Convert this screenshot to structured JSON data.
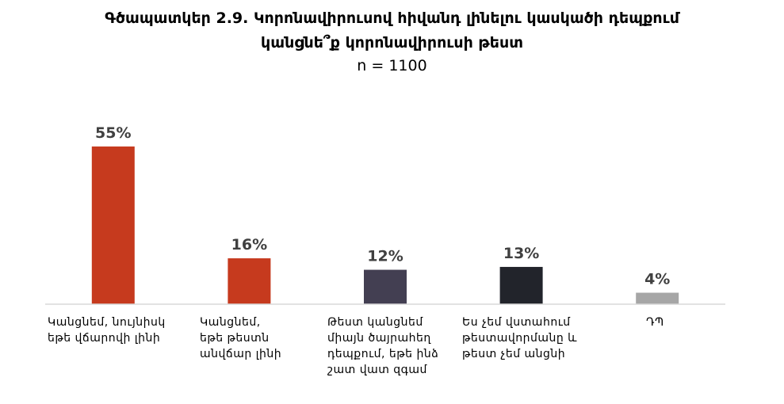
{
  "chart_data": {
    "type": "bar",
    "title_line1": "Գծապատկեր 2.9. Կորոնավիրուսով հիվանդ լինելու կասկածի դեպքում",
    "title_line2": "կանցնե՞ք կորոնավիրուսի թեստ",
    "subtitle": "n = 1100",
    "categories": [
      "Կանցնեմ, նույնիսկ եթե վճարովի լինի",
      "Կանցնեմ, եթե թեստն անվճար լինի",
      "Թեստ կանցնեմ միայն ծայրահեղ դեպքում, եթե ինձ շատ վատ զգամ",
      "Ես չեմ վստահում թեստավորմանը և թեստ չեմ անցնի",
      "ԴՊ"
    ],
    "values": [
      55,
      16,
      12,
      13,
      4
    ],
    "data_labels": [
      "55%",
      "16%",
      "12%",
      "13%",
      "4%"
    ],
    "colors": [
      "#c63a1e",
      "#c63a1e",
      "#433f52",
      "#22242b",
      "#a6a6a6"
    ],
    "ylim": [
      0,
      100
    ],
    "grid": false,
    "legend": "none"
  }
}
